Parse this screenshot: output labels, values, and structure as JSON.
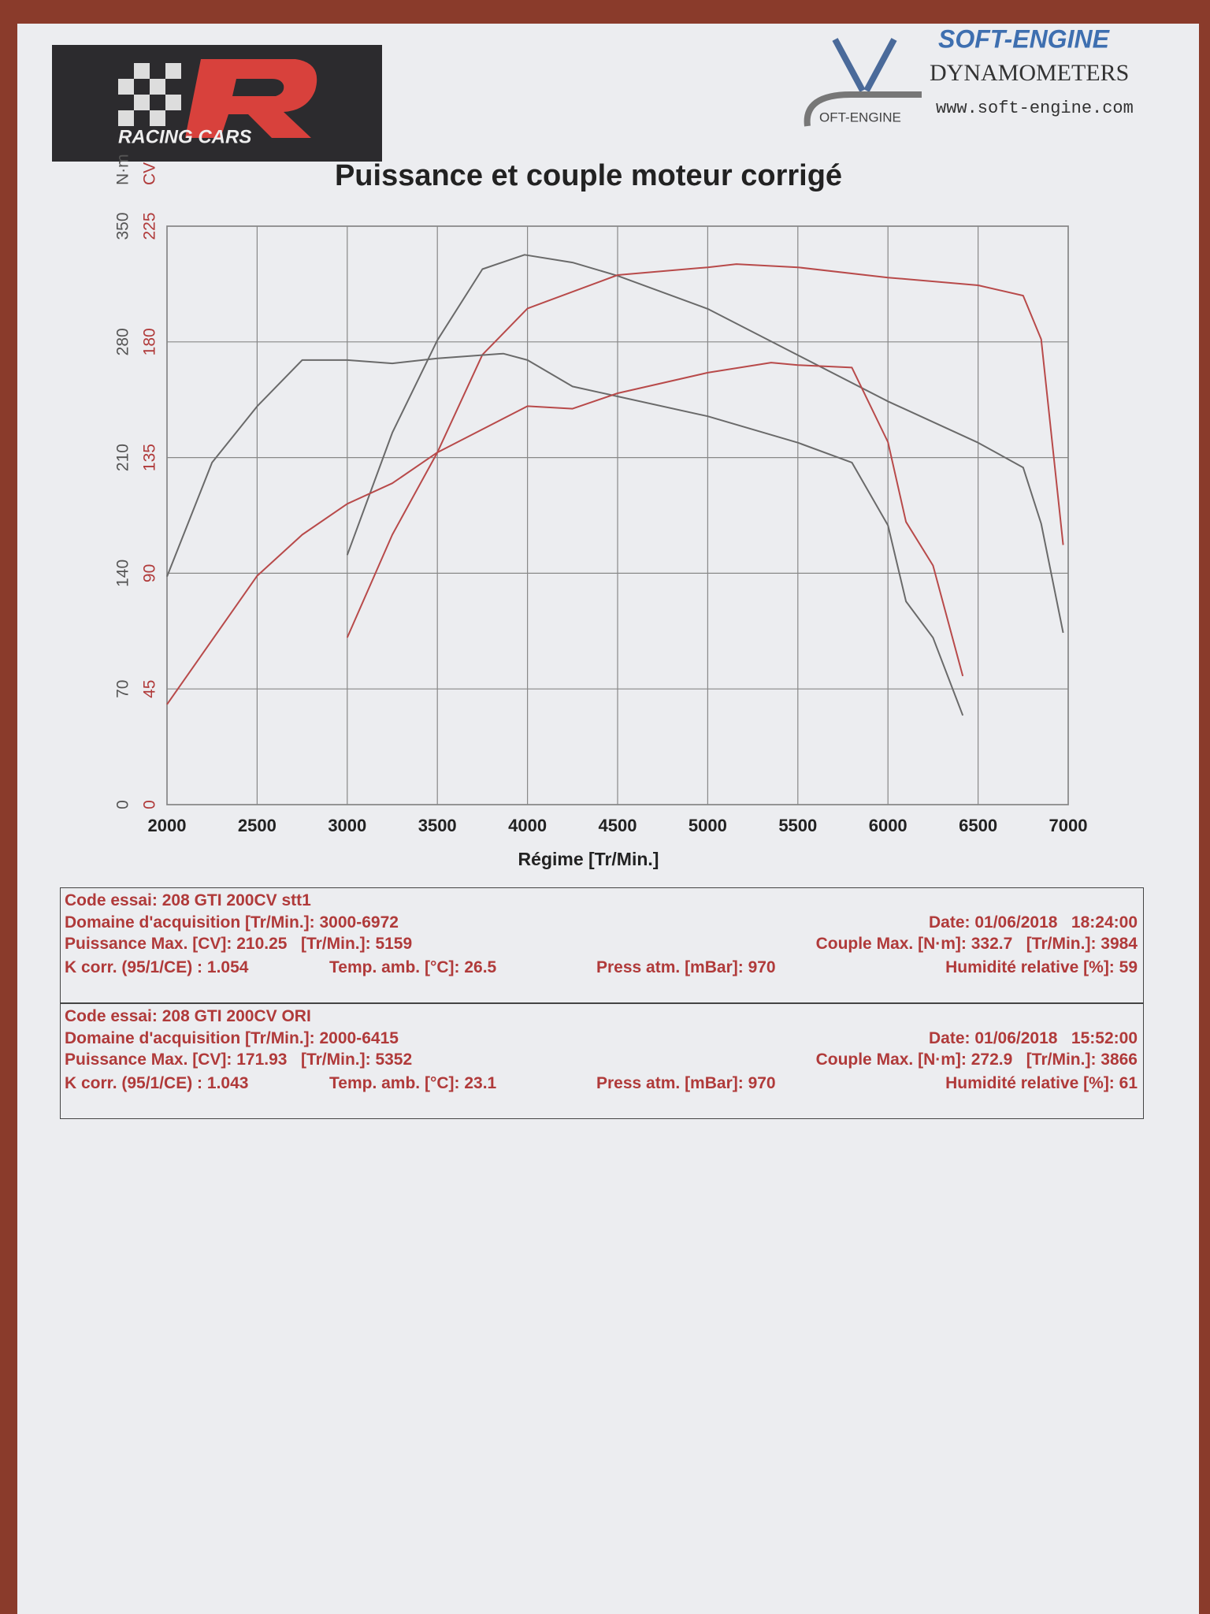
{
  "brand": {
    "logo": "RACING CARS",
    "maker": "SOFT-ENGINE",
    "maker_sub": "DYNAMOMETERS",
    "url": "www.soft-engine.com",
    "maker_logo": "OFT-ENGINE"
  },
  "chart_data": {
    "type": "line",
    "title": "Puissance et couple moteur corrigé",
    "xlabel": "Régime [Tr/Min.]",
    "ylabel": "N·m",
    "y2label": "CV",
    "xlim": [
      2000,
      7000
    ],
    "xticks": [
      2000,
      2500,
      3000,
      3500,
      4000,
      4500,
      5000,
      5500,
      6000,
      6500,
      7000
    ],
    "ylim": [
      0,
      350
    ],
    "yticks": [
      0,
      70,
      140,
      210,
      280,
      350
    ],
    "y2lim": [
      0,
      225
    ],
    "y2ticks": [
      0,
      45,
      90,
      135,
      180,
      225
    ],
    "grid": true,
    "ycolor": "#555555",
    "y2color": "#b03a3a",
    "series": [
      {
        "color": "#6a6a6a",
        "axis": "y",
        "x": [
          3000,
          3250,
          3500,
          3750,
          3984,
          4250,
          4500,
          5000,
          5500,
          6000,
          6500,
          6750,
          6850,
          6972
        ],
        "values": [
          151,
          225,
          281,
          324,
          332.7,
          328,
          320,
          300,
          272,
          244,
          219,
          204,
          170,
          104
        ]
      },
      {
        "color": "#b84a4a",
        "axis": "y2",
        "x": [
          3000,
          3250,
          3500,
          3750,
          4000,
          4500,
          5000,
          5159,
          5500,
          6000,
          6500,
          6750,
          6850,
          6972
        ],
        "values": [
          65,
          105,
          137,
          175,
          193,
          206,
          209,
          210.25,
          209,
          205,
          202,
          198,
          181,
          101
        ]
      },
      {
        "color": "#6a6a6a",
        "axis": "y",
        "x": [
          2000,
          2250,
          2500,
          2750,
          3000,
          3250,
          3500,
          3866,
          4000,
          4250,
          4500,
          5000,
          5500,
          5800,
          6000,
          6100,
          6250,
          6415
        ],
        "values": [
          138,
          207,
          241,
          269,
          269,
          267,
          270,
          272.9,
          269,
          253,
          247,
          235,
          219,
          207,
          169,
          123,
          101,
          54
        ]
      },
      {
        "color": "#b84a4a",
        "axis": "y2",
        "x": [
          2000,
          2500,
          2750,
          3000,
          3250,
          3500,
          4000,
          4250,
          4500,
          5000,
          5352,
          5500,
          5800,
          6000,
          6100,
          6250,
          6415
        ],
        "values": [
          39,
          89,
          105,
          117,
          125,
          137,
          155,
          154,
          160,
          168,
          171.93,
          171,
          170,
          141,
          110,
          93,
          50
        ]
      }
    ]
  },
  "tests": [
    {
      "code": "Code essai: 208 GTI 200CV stt1",
      "domain": "Domaine d'acquisition [Tr/Min.]: 3000-6972",
      "date": "Date: 01/06/2018   18:24:00",
      "pmax": "Puissance Max. [CV]: 210.25   [Tr/Min.]: 5159",
      "cmax": "Couple Max. [N·m]: 332.7   [Tr/Min.]: 3984",
      "kcorr": "K corr. (95/1/CE) : 1.054",
      "temp": "Temp. amb. [°C]: 26.5",
      "press": "Press atm. [mBar]: 970",
      "hum": "Humidité relative [%]: 59"
    },
    {
      "code": "Code essai: 208 GTI 200CV ORI",
      "domain": "Domaine d'acquisition [Tr/Min.]: 2000-6415",
      "date": "Date: 01/06/2018   15:52:00",
      "pmax": "Puissance Max. [CV]: 171.93   [Tr/Min.]: 5352",
      "cmax": "Couple Max. [N·m]: 272.9   [Tr/Min.]: 3866",
      "kcorr": "K corr. (95/1/CE) : 1.043",
      "temp": "Temp. amb. [°C]: 23.1",
      "press": "Press atm. [mBar]: 970",
      "hum": "Humidité relative [%]: 61"
    }
  ]
}
